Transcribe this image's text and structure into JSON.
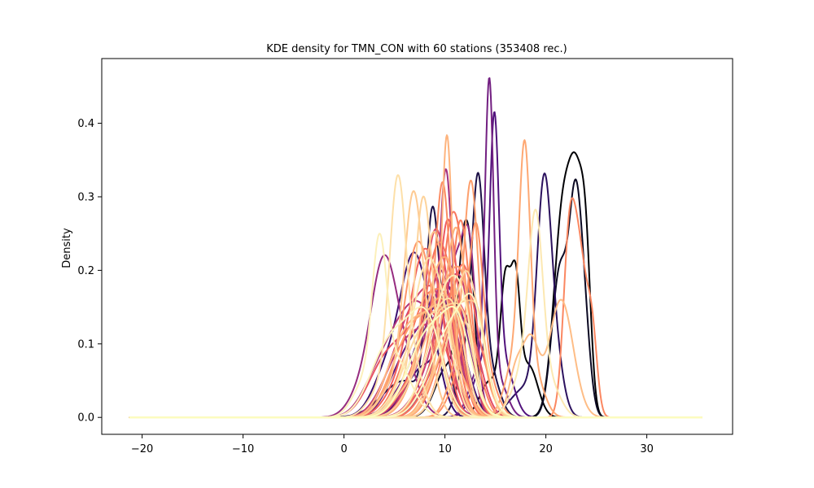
{
  "chart_data": {
    "type": "line",
    "title": "KDE density for TMN_CON with 60 stations (353408 rec.)",
    "xlabel": "",
    "ylabel": "Density",
    "xlim": [
      -24,
      38.5
    ],
    "ylim": [
      -0.023,
      0.488
    ],
    "x_ticks": [
      -20,
      -10,
      0,
      10,
      20,
      30
    ],
    "x_tick_labels": [
      "−20",
      "−10",
      "0",
      "10",
      "20",
      "30"
    ],
    "y_ticks": [
      0.0,
      0.1,
      0.2,
      0.3,
      0.4
    ],
    "y_tick_labels": [
      "0.0",
      "0.1",
      "0.2",
      "0.3",
      "0.4"
    ],
    "grid": false,
    "legend": "none",
    "colormap": "magma",
    "x_range": [
      -21.3,
      35.5
    ],
    "series": [
      {
        "color": "#000004",
        "components": [
          [
            21.7,
            0.9,
            0.28
          ],
          [
            23.1,
            0.7,
            0.24
          ],
          [
            24.0,
            0.5,
            0.16
          ]
        ]
      },
      {
        "color": "#000004",
        "components": [
          [
            16.0,
            0.5,
            0.17
          ],
          [
            17.0,
            0.45,
            0.16
          ],
          [
            18.3,
            0.9,
            0.07
          ],
          [
            14.5,
            1.0,
            0.05
          ]
        ]
      },
      {
        "color": "#0a0822",
        "components": [
          [
            11.8,
            0.55,
            0.18
          ],
          [
            12.6,
            0.5,
            0.15
          ],
          [
            10.3,
            1.2,
            0.07
          ]
        ]
      },
      {
        "color": "#0a0822",
        "components": [
          [
            21.4,
            0.8,
            0.2
          ],
          [
            22.9,
            0.6,
            0.25
          ],
          [
            23.8,
            0.6,
            0.12
          ]
        ]
      },
      {
        "color": "#1d1147",
        "components": [
          [
            13.3,
            0.6,
            0.27
          ],
          [
            12.2,
            0.9,
            0.08
          ],
          [
            14.5,
            0.9,
            0.06
          ]
        ]
      },
      {
        "color": "#1d1147",
        "components": [
          [
            8.7,
            0.6,
            0.2
          ],
          [
            9.6,
            0.9,
            0.1
          ],
          [
            6.0,
            2.2,
            0.05
          ]
        ]
      },
      {
        "color": "#2b115e",
        "components": [
          [
            19.8,
            0.7,
            0.28
          ],
          [
            20.9,
            0.8,
            0.08
          ],
          [
            18.0,
            1.5,
            0.04
          ]
        ]
      },
      {
        "color": "#3b0f70",
        "components": [
          [
            7.0,
            1.3,
            0.2
          ],
          [
            4.5,
            1.5,
            0.07
          ],
          [
            9.0,
            1.0,
            0.05
          ]
        ]
      },
      {
        "color": "#3b0f70",
        "components": [
          [
            10.5,
            0.9,
            0.12
          ],
          [
            8.0,
            1.8,
            0.07
          ],
          [
            12.0,
            1.0,
            0.05
          ]
        ]
      },
      {
        "color": "#51127c",
        "components": [
          [
            14.9,
            0.45,
            0.33
          ],
          [
            14.0,
            1.1,
            0.08
          ],
          [
            16.0,
            0.9,
            0.06
          ]
        ]
      },
      {
        "color": "#5c167f",
        "components": [
          [
            9.2,
            1.6,
            0.14
          ],
          [
            11.0,
            1.0,
            0.08
          ],
          [
            6.5,
            1.8,
            0.04
          ]
        ]
      },
      {
        "color": "#641a80",
        "components": [
          [
            8.5,
            2.0,
            0.12
          ],
          [
            10.5,
            1.2,
            0.07
          ],
          [
            5.5,
            1.5,
            0.04
          ]
        ]
      },
      {
        "color": "#721f81",
        "components": [
          [
            14.4,
            0.42,
            0.4
          ],
          [
            13.5,
            1.0,
            0.07
          ],
          [
            15.5,
            0.8,
            0.04
          ]
        ]
      },
      {
        "color": "#7d2482",
        "components": [
          [
            10.0,
            1.5,
            0.15
          ],
          [
            7.5,
            1.8,
            0.06
          ],
          [
            12.0,
            1.0,
            0.06
          ]
        ]
      },
      {
        "color": "#8c2981",
        "components": [
          [
            11.3,
            1.2,
            0.2
          ],
          [
            12.5,
            0.6,
            0.12
          ],
          [
            9.0,
            1.5,
            0.05
          ]
        ]
      },
      {
        "color": "#962c80",
        "components": [
          [
            3.8,
            1.2,
            0.16
          ],
          [
            5.5,
            1.5,
            0.09
          ],
          [
            1.8,
            1.3,
            0.035
          ]
        ]
      },
      {
        "color": "#a3307e",
        "components": [
          [
            10.1,
            0.6,
            0.27
          ],
          [
            9.0,
            1.3,
            0.07
          ],
          [
            11.5,
            1.0,
            0.05
          ]
        ]
      },
      {
        "color": "#b13479",
        "components": [
          [
            6.0,
            2.0,
            0.12
          ],
          [
            8.5,
            1.6,
            0.08
          ],
          [
            3.0,
            1.5,
            0.03
          ]
        ]
      },
      {
        "color": "#b73779",
        "components": [
          [
            9.5,
            1.1,
            0.18
          ],
          [
            11.5,
            1.0,
            0.06
          ],
          [
            7.0,
            1.5,
            0.05
          ]
        ]
      },
      {
        "color": "#c03a76",
        "components": [
          [
            8.0,
            2.2,
            0.11
          ],
          [
            10.5,
            1.2,
            0.08
          ],
          [
            5.0,
            1.6,
            0.04
          ]
        ]
      },
      {
        "color": "#c83e73",
        "components": [
          [
            10.6,
            1.3,
            0.15
          ],
          [
            12.0,
            0.8,
            0.08
          ],
          [
            8.5,
            1.6,
            0.05
          ]
        ]
      },
      {
        "color": "#d3436e",
        "components": [
          [
            7.5,
            1.8,
            0.14
          ],
          [
            9.5,
            1.2,
            0.08
          ],
          [
            5.0,
            1.5,
            0.04
          ]
        ]
      },
      {
        "color": "#dc4869",
        "components": [
          [
            9.0,
            1.0,
            0.22
          ],
          [
            10.5,
            0.9,
            0.08
          ],
          [
            7.0,
            1.3,
            0.05
          ]
        ]
      },
      {
        "color": "#e24d66",
        "components": [
          [
            11.0,
            1.6,
            0.13
          ],
          [
            9.0,
            1.5,
            0.07
          ],
          [
            13.0,
            1.0,
            0.04
          ]
        ]
      },
      {
        "color": "#e85362",
        "components": [
          [
            6.5,
            2.4,
            0.1
          ],
          [
            9.0,
            1.5,
            0.08
          ],
          [
            3.5,
            1.5,
            0.03
          ]
        ]
      },
      {
        "color": "#ed5a5f",
        "components": [
          [
            10.2,
            0.8,
            0.22
          ],
          [
            11.5,
            0.8,
            0.09
          ],
          [
            8.5,
            1.4,
            0.05
          ]
        ]
      },
      {
        "color": "#f1605d",
        "components": [
          [
            7.8,
            1.3,
            0.19
          ],
          [
            9.5,
            1.1,
            0.08
          ],
          [
            5.5,
            1.5,
            0.04
          ]
        ]
      },
      {
        "color": "#f4695c",
        "components": [
          [
            12.0,
            1.1,
            0.16
          ],
          [
            10.5,
            1.3,
            0.08
          ],
          [
            14.0,
            0.9,
            0.04
          ]
        ]
      },
      {
        "color": "#f6705c",
        "components": [
          [
            9.3,
            1.2,
            0.2
          ],
          [
            11.0,
            1.0,
            0.08
          ],
          [
            7.0,
            1.6,
            0.05
          ]
        ]
      },
      {
        "color": "#f8765c",
        "components": [
          [
            10.8,
            1.0,
            0.24
          ],
          [
            12.3,
            0.9,
            0.07
          ],
          [
            9.0,
            1.4,
            0.05
          ]
        ]
      },
      {
        "color": "#f97c5d",
        "components": [
          [
            8.5,
            1.6,
            0.15
          ],
          [
            10.5,
            1.0,
            0.08
          ],
          [
            6.0,
            1.5,
            0.04
          ]
        ]
      },
      {
        "color": "#fa815f",
        "components": [
          [
            11.6,
            0.8,
            0.22
          ],
          [
            10.0,
            1.3,
            0.08
          ],
          [
            13.2,
            0.9,
            0.05
          ]
        ]
      },
      {
        "color": "#fb8761",
        "components": [
          [
            22.3,
            0.6,
            0.22
          ],
          [
            23.4,
            0.7,
            0.2
          ],
          [
            24.6,
            0.5,
            0.1
          ]
        ]
      },
      {
        "color": "#fc8c63",
        "components": [
          [
            9.8,
            0.7,
            0.26
          ],
          [
            8.5,
            1.2,
            0.08
          ],
          [
            11.5,
            1.1,
            0.05
          ]
        ]
      },
      {
        "color": "#fc9165",
        "components": [
          [
            13.1,
            0.7,
            0.2
          ],
          [
            12.0,
            1.2,
            0.08
          ],
          [
            14.5,
            0.9,
            0.04
          ]
        ]
      },
      {
        "color": "#fd9668",
        "components": [
          [
            7.2,
            1.2,
            0.2
          ],
          [
            9.0,
            1.2,
            0.08
          ],
          [
            5.0,
            1.4,
            0.04
          ]
        ]
      },
      {
        "color": "#fd9a6a",
        "components": [
          [
            10.5,
            1.5,
            0.16
          ],
          [
            12.0,
            0.9,
            0.08
          ],
          [
            8.5,
            1.5,
            0.04
          ]
        ]
      },
      {
        "color": "#fd9f6c",
        "components": [
          [
            12.6,
            0.7,
            0.28
          ],
          [
            11.3,
            1.0,
            0.07
          ],
          [
            14.0,
            0.9,
            0.04
          ]
        ]
      },
      {
        "color": "#fea36f",
        "components": [
          [
            8.0,
            2.0,
            0.12
          ],
          [
            10.0,
            1.0,
            0.08
          ],
          [
            5.5,
            1.6,
            0.04
          ]
        ]
      },
      {
        "color": "#fea873",
        "components": [
          [
            17.9,
            0.55,
            0.3
          ],
          [
            17.0,
            1.0,
            0.08
          ],
          [
            19.0,
            0.9,
            0.05
          ]
        ]
      },
      {
        "color": "#feac76",
        "components": [
          [
            9.5,
            1.4,
            0.17
          ],
          [
            11.0,
            1.0,
            0.08
          ],
          [
            7.5,
            1.5,
            0.04
          ]
        ]
      },
      {
        "color": "#feb07a",
        "components": [
          [
            11.2,
            0.9,
            0.2
          ],
          [
            9.8,
            1.2,
            0.09
          ],
          [
            12.8,
            1.0,
            0.04
          ]
        ]
      },
      {
        "color": "#feb47e",
        "components": [
          [
            10.2,
            0.5,
            0.32
          ],
          [
            9.2,
            1.2,
            0.06
          ],
          [
            11.5,
            1.0,
            0.05
          ]
        ]
      },
      {
        "color": "#feb982",
        "components": [
          [
            7.5,
            1.9,
            0.12
          ],
          [
            10.0,
            1.2,
            0.09
          ],
          [
            5.0,
            1.5,
            0.04
          ]
        ]
      },
      {
        "color": "#febd86",
        "components": [
          [
            18.5,
            0.8,
            0.1
          ],
          [
            21.5,
            1.2,
            0.16
          ],
          [
            17.0,
            0.7,
            0.06
          ]
        ]
      },
      {
        "color": "#fec18a",
        "components": [
          [
            8.8,
            1.0,
            0.22
          ],
          [
            10.5,
            1.0,
            0.08
          ],
          [
            6.5,
            1.5,
            0.04
          ]
        ]
      },
      {
        "color": "#fec68e",
        "components": [
          [
            11.8,
            1.4,
            0.14
          ],
          [
            13.5,
            0.8,
            0.07
          ],
          [
            9.5,
            1.3,
            0.05
          ]
        ]
      },
      {
        "color": "#feca92",
        "components": [
          [
            6.8,
            0.9,
            0.25
          ],
          [
            8.0,
            1.1,
            0.08
          ],
          [
            4.8,
            1.3,
            0.04
          ]
        ]
      },
      {
        "color": "#fdcf97",
        "components": [
          [
            10.0,
            1.7,
            0.13
          ],
          [
            12.0,
            1.0,
            0.07
          ],
          [
            7.5,
            1.6,
            0.04
          ]
        ]
      },
      {
        "color": "#fdd39b",
        "components": [
          [
            7.8,
            0.8,
            0.24
          ],
          [
            9.0,
            1.1,
            0.08
          ],
          [
            6.0,
            1.3,
            0.04
          ]
        ]
      },
      {
        "color": "#fdd7a0",
        "components": [
          [
            12.3,
            1.1,
            0.16
          ],
          [
            10.5,
            1.3,
            0.08
          ],
          [
            14.0,
            0.9,
            0.04
          ]
        ]
      },
      {
        "color": "#fddca4",
        "components": [
          [
            9.0,
            1.9,
            0.12
          ],
          [
            11.0,
            1.1,
            0.08
          ],
          [
            6.5,
            1.5,
            0.04
          ]
        ]
      },
      {
        "color": "#fde0a9",
        "components": [
          [
            5.3,
            0.8,
            0.26
          ],
          [
            6.5,
            1.2,
            0.08
          ],
          [
            3.8,
            1.3,
            0.04
          ]
        ]
      },
      {
        "color": "#fde4ad",
        "components": [
          [
            8.2,
            1.3,
            0.18
          ],
          [
            10.0,
            1.1,
            0.08
          ],
          [
            6.0,
            1.5,
            0.04
          ]
        ]
      },
      {
        "color": "#fce8b2",
        "components": [
          [
            19.0,
            0.7,
            0.22
          ],
          [
            18.0,
            1.2,
            0.07
          ],
          [
            20.5,
            1.0,
            0.04
          ]
        ]
      },
      {
        "color": "#fcecb6",
        "components": [
          [
            10.4,
            1.5,
            0.15
          ],
          [
            12.0,
            1.0,
            0.07
          ],
          [
            8.5,
            1.6,
            0.04
          ]
        ]
      },
      {
        "color": "#fcf0bb",
        "components": [
          [
            3.5,
            0.7,
            0.18
          ],
          [
            5.0,
            1.6,
            0.08
          ],
          [
            2.0,
            1.2,
            0.04
          ]
        ]
      },
      {
        "color": "#fcf4bf",
        "components": [
          [
            6.0,
            2.2,
            0.11
          ],
          [
            8.5,
            1.4,
            0.08
          ],
          [
            3.5,
            1.5,
            0.03
          ]
        ]
      },
      {
        "color": "#fcf8c3",
        "components": [
          [
            11.5,
            1.8,
            0.12
          ],
          [
            13.0,
            1.0,
            0.07
          ],
          [
            9.0,
            1.6,
            0.04
          ]
        ]
      },
      {
        "color": "#fcfdbf",
        "components": [
          [
            9.5,
            2.0,
            0.11
          ],
          [
            11.5,
            1.2,
            0.07
          ],
          [
            7.0,
            1.6,
            0.04
          ]
        ]
      }
    ]
  }
}
